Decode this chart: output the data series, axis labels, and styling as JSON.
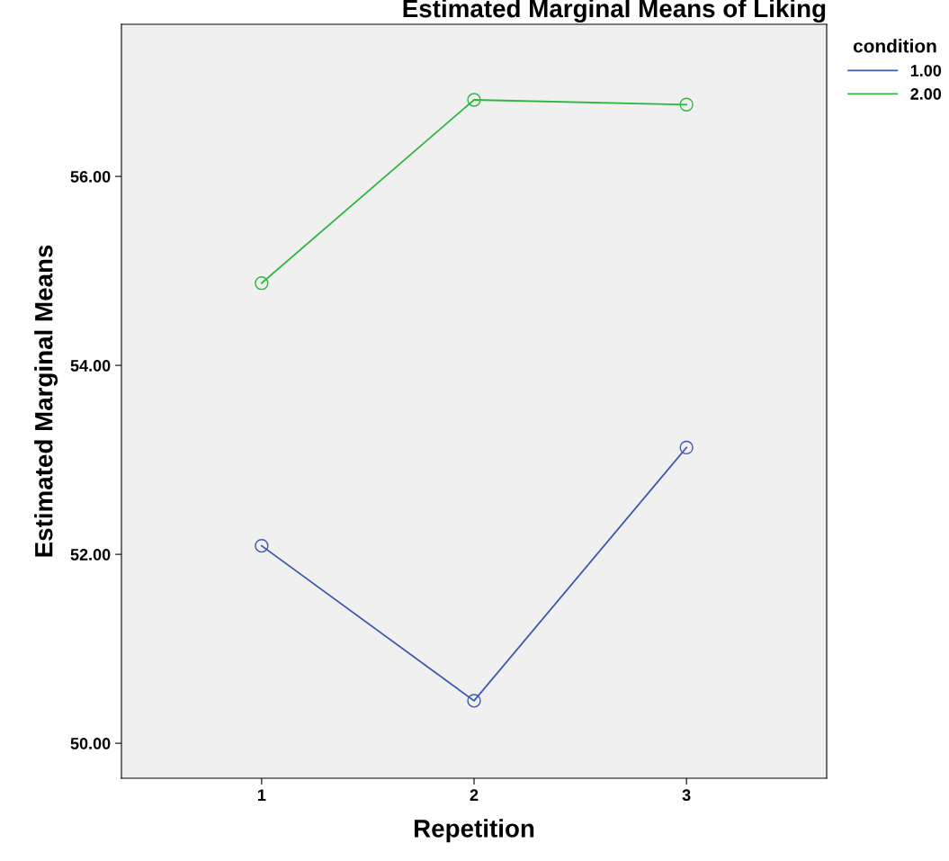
{
  "chart_data": {
    "type": "line",
    "title": "Estimated Marginal Means of Liking",
    "xlabel": "Repetition",
    "ylabel": "Estimated Marginal Means",
    "categories": [
      "1",
      "2",
      "3"
    ],
    "series": [
      {
        "name": "1.00",
        "color": "#3e58ac",
        "values": [
          52.09,
          50.45,
          53.13
        ]
      },
      {
        "name": "2.00",
        "color": "#2db83d",
        "values": [
          54.87,
          56.81,
          56.76
        ]
      }
    ],
    "ylim": [
      49.63,
      57.61
    ],
    "yticks": [
      {
        "value": 50,
        "label": "50.00"
      },
      {
        "value": 52,
        "label": "52.00"
      },
      {
        "value": 54,
        "label": "54.00"
      },
      {
        "value": 56,
        "label": "56.00"
      }
    ],
    "legend_title": "condition",
    "legend": "top right",
    "marker": "circle",
    "line_style": "solid",
    "grid": false
  }
}
